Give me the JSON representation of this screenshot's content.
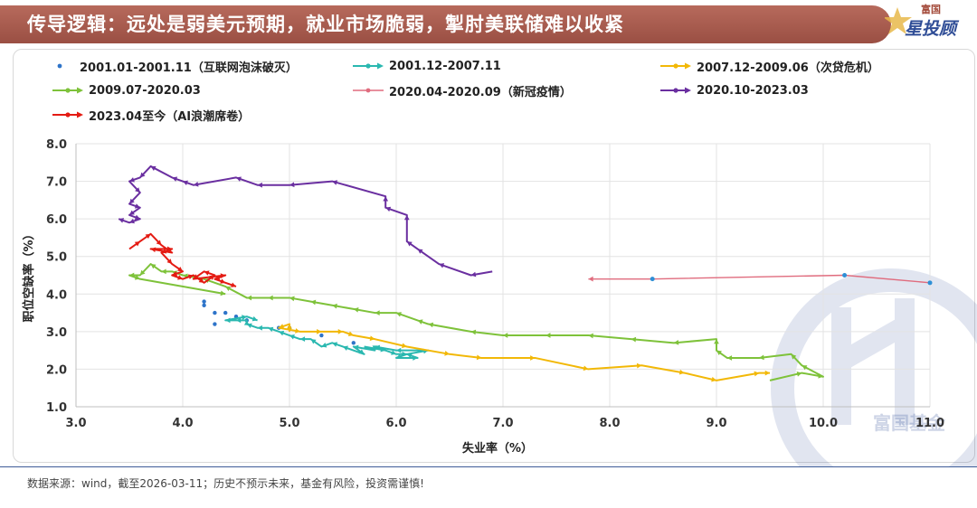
{
  "header": {
    "title": "传导逻辑：远处是弱美元预期，就业市场脆弱，掣肘美联储难以收紧",
    "brand_small": "富国",
    "brand_large": "星投顾"
  },
  "watermark": "富国基金",
  "footer": {
    "note": "数据来源：wind，截至2026-03-11；历史不预示未来，基金有风险，投资需谨慎!"
  },
  "chart_data": {
    "type": "line",
    "title": "",
    "xlabel": "失业率（%）",
    "ylabel": "职位空缺率（%）",
    "xlim": [
      3.0,
      11.0
    ],
    "ylim": [
      1.0,
      8.0
    ],
    "xticks": [
      3.0,
      4.0,
      5.0,
      6.0,
      7.0,
      8.0,
      9.0,
      10.0,
      11.0
    ],
    "yticks": [
      1.0,
      2.0,
      3.0,
      4.0,
      5.0,
      6.0,
      7.0,
      8.0
    ],
    "series": [
      {
        "name": "2001.01-2001.11（互联网泡沫破灭）",
        "color": "#2e74c9",
        "style": "dots",
        "points": [
          [
            4.2,
            3.8
          ],
          [
            4.2,
            3.7
          ],
          [
            4.3,
            3.5
          ],
          [
            4.4,
            3.5
          ],
          [
            4.5,
            3.4
          ],
          [
            4.3,
            3.2
          ],
          [
            4.6,
            3.3
          ],
          [
            4.9,
            3.1
          ],
          [
            5.0,
            3.1
          ],
          [
            5.3,
            2.9
          ],
          [
            5.6,
            2.7
          ]
        ]
      },
      {
        "name": "2001.12-2007.11",
        "color": "#2ab8b0",
        "style": "arrow",
        "points": [
          [
            5.7,
            2.6
          ],
          [
            5.9,
            2.5
          ],
          [
            6.0,
            2.4
          ],
          [
            6.1,
            2.4
          ],
          [
            6.0,
            2.3
          ],
          [
            6.2,
            2.3
          ],
          [
            6.1,
            2.4
          ],
          [
            6.3,
            2.5
          ],
          [
            6.0,
            2.5
          ],
          [
            5.8,
            2.6
          ],
          [
            5.8,
            2.5
          ],
          [
            5.6,
            2.6
          ],
          [
            5.7,
            2.4
          ],
          [
            5.5,
            2.6
          ],
          [
            5.4,
            2.7
          ],
          [
            5.3,
            2.6
          ],
          [
            5.2,
            2.8
          ],
          [
            5.1,
            2.8
          ],
          [
            5.0,
            2.9
          ],
          [
            4.9,
            3.0
          ],
          [
            4.8,
            3.1
          ],
          [
            4.7,
            3.1
          ],
          [
            4.6,
            3.2
          ],
          [
            4.6,
            3.3
          ],
          [
            4.5,
            3.3
          ],
          [
            4.4,
            3.3
          ],
          [
            4.6,
            3.4
          ],
          [
            4.7,
            3.3
          ]
        ]
      },
      {
        "name": "2007.12-2009.06（次贷危机）",
        "color": "#f2b807",
        "style": "arrow",
        "points": [
          [
            5.0,
            3.0
          ],
          [
            5.0,
            3.2
          ],
          [
            4.9,
            3.1
          ],
          [
            5.1,
            3.0
          ],
          [
            5.3,
            3.0
          ],
          [
            5.5,
            3.0
          ],
          [
            5.6,
            2.9
          ],
          [
            5.8,
            2.8
          ],
          [
            6.1,
            2.6
          ],
          [
            6.5,
            2.4
          ],
          [
            6.8,
            2.3
          ],
          [
            7.3,
            2.3
          ],
          [
            7.8,
            2.0
          ],
          [
            8.3,
            2.1
          ],
          [
            8.7,
            1.9
          ],
          [
            9.0,
            1.7
          ],
          [
            9.4,
            1.9
          ],
          [
            9.5,
            1.9
          ]
        ]
      },
      {
        "name": "2009.07-2020.03",
        "color": "#7ec23a",
        "style": "arrow",
        "points": [
          [
            9.5,
            1.7
          ],
          [
            9.8,
            1.9
          ],
          [
            10.0,
            1.8
          ],
          [
            9.8,
            2.1
          ],
          [
            9.7,
            2.4
          ],
          [
            9.4,
            2.3
          ],
          [
            9.1,
            2.3
          ],
          [
            9.0,
            2.5
          ],
          [
            9.0,
            2.8
          ],
          [
            8.6,
            2.7
          ],
          [
            8.2,
            2.8
          ],
          [
            7.8,
            2.9
          ],
          [
            7.4,
            2.9
          ],
          [
            7.0,
            2.9
          ],
          [
            6.7,
            3.0
          ],
          [
            6.3,
            3.2
          ],
          [
            6.2,
            3.3
          ],
          [
            6.0,
            3.5
          ],
          [
            5.8,
            3.5
          ],
          [
            5.6,
            3.6
          ],
          [
            5.4,
            3.7
          ],
          [
            5.2,
            3.8
          ],
          [
            5.0,
            3.9
          ],
          [
            4.8,
            3.9
          ],
          [
            4.6,
            3.9
          ],
          [
            4.4,
            4.2
          ],
          [
            4.2,
            4.4
          ],
          [
            4.0,
            4.5
          ],
          [
            3.9,
            4.6
          ],
          [
            3.8,
            4.6
          ],
          [
            3.7,
            4.8
          ],
          [
            3.6,
            4.5
          ],
          [
            3.5,
            4.5
          ],
          [
            3.6,
            4.4
          ],
          [
            4.4,
            4.0
          ]
        ]
      },
      {
        "name": "2020.04-2020.09（新冠疫情）",
        "color": "#e06c7e",
        "style": "markers-line",
        "points": [
          [
            11.0,
            4.3
          ],
          [
            10.2,
            4.5
          ],
          [
            8.4,
            4.4
          ],
          [
            7.8,
            4.4
          ]
        ]
      },
      {
        "name": "2020.10-2023.03",
        "color": "#6a2fa0",
        "style": "arrow",
        "points": [
          [
            6.9,
            4.6
          ],
          [
            6.7,
            4.5
          ],
          [
            6.4,
            4.8
          ],
          [
            6.2,
            5.2
          ],
          [
            6.1,
            5.4
          ],
          [
            6.1,
            6.1
          ],
          [
            5.9,
            6.3
          ],
          [
            5.9,
            6.6
          ],
          [
            5.4,
            7.0
          ],
          [
            5.0,
            6.9
          ],
          [
            4.7,
            6.9
          ],
          [
            4.5,
            7.1
          ],
          [
            4.1,
            6.9
          ],
          [
            4.0,
            7.0
          ],
          [
            3.9,
            7.1
          ],
          [
            3.7,
            7.4
          ],
          [
            3.6,
            7.1
          ],
          [
            3.5,
            7.0
          ],
          [
            3.6,
            6.7
          ],
          [
            3.5,
            6.4
          ],
          [
            3.6,
            6.3
          ],
          [
            3.5,
            6.1
          ],
          [
            3.6,
            6.0
          ],
          [
            3.5,
            5.9
          ],
          [
            3.4,
            6.0
          ]
        ]
      },
      {
        "name": "2023.04至今（AI浪潮席卷）",
        "color": "#e41b13",
        "style": "arrow",
        "points": [
          [
            3.5,
            5.2
          ],
          [
            3.6,
            5.4
          ],
          [
            3.7,
            5.6
          ],
          [
            3.8,
            5.3
          ],
          [
            3.9,
            5.1
          ],
          [
            3.7,
            5.2
          ],
          [
            3.9,
            5.2
          ],
          [
            3.8,
            5.1
          ],
          [
            3.9,
            4.8
          ],
          [
            4.0,
            4.6
          ],
          [
            3.9,
            4.5
          ],
          [
            4.0,
            4.4
          ],
          [
            4.1,
            4.5
          ],
          [
            4.2,
            4.3
          ],
          [
            4.3,
            4.5
          ],
          [
            4.2,
            4.6
          ],
          [
            4.1,
            4.4
          ],
          [
            4.4,
            4.5
          ],
          [
            4.3,
            4.4
          ],
          [
            4.4,
            4.3
          ],
          [
            4.5,
            4.2
          ]
        ]
      }
    ]
  }
}
